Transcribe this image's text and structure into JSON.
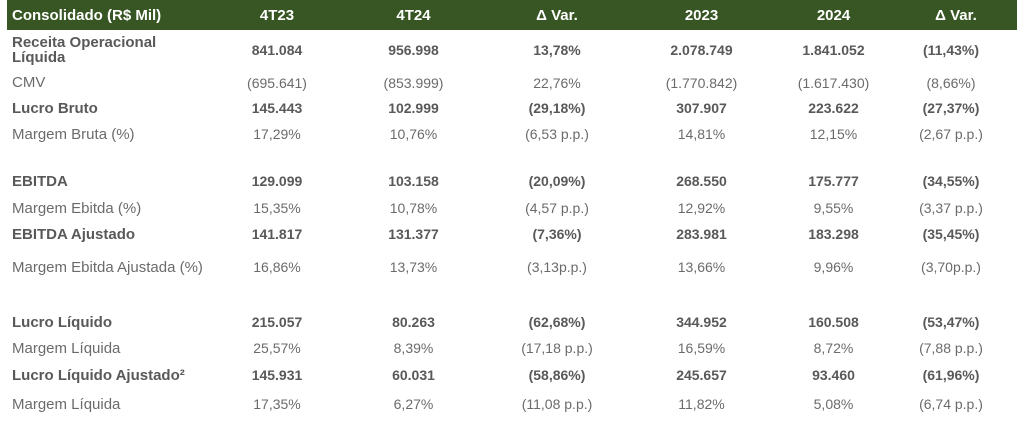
{
  "headers": [
    "Consolidado (R$ Mil)",
    "4T23",
    "4T24",
    "Δ Var.",
    "2023",
    "2024",
    "Δ Var."
  ],
  "rows": [
    {
      "label": "Receita Operacional Líquida",
      "values": [
        "841.084",
        "956.998",
        "13,78%",
        "2.078.749",
        "1.841.052",
        "(11,43%)"
      ]
    },
    {
      "label": "CMV",
      "values": [
        "(695.641)",
        "(853.999)",
        "22,76%",
        "(1.770.842)",
        "(1.617.430)",
        "(8,66%)"
      ]
    },
    {
      "label": "Lucro Bruto",
      "values": [
        "145.443",
        "102.999",
        "(29,18%)",
        "307.907",
        "223.622",
        "(27,37%)"
      ]
    },
    {
      "label": "Margem Bruta (%)",
      "values": [
        "17,29%",
        "10,76%",
        "(6,53 p.p.)",
        "14,81%",
        "12,15%",
        "(2,67 p.p.)"
      ]
    },
    {
      "label": "EBITDA",
      "values": [
        "129.099",
        "103.158",
        "(20,09%)",
        "268.550",
        "175.777",
        "(34,55%)"
      ]
    },
    {
      "label": "Margem Ebitda (%)",
      "values": [
        "15,35%",
        "10,78%",
        "(4,57 p.p.)",
        "12,92%",
        "9,55%",
        "(3,37 p.p.)"
      ]
    },
    {
      "label": "EBITDA Ajustado",
      "values": [
        "141.817",
        "131.377",
        "(7,36%)",
        "283.981",
        "183.298",
        "(35,45%)"
      ]
    },
    {
      "label": "Margem Ebitda Ajustada (%)",
      "values": [
        "16,86%",
        "13,73%",
        "(3,13p.p.)",
        "13,66%",
        "9,96%",
        "(3,70p.p.)"
      ]
    },
    {
      "label": "Lucro Líquido",
      "values": [
        "215.057",
        "80.263",
        "(62,68%)",
        "344.952",
        "160.508",
        "(53,47%)"
      ]
    },
    {
      "label": "Margem Líquida",
      "values": [
        "25,57%",
        "8,39%",
        "(17,18 p.p.)",
        "16,59%",
        "8,72%",
        "(7,88 p.p.)"
      ]
    },
    {
      "label": "Lucro Líquido Ajustado²",
      "values": [
        "145.931",
        "60.031",
        "(58,86%)",
        "245.657",
        "93.460",
        "(61,96%)"
      ]
    },
    {
      "label": "Margem Líquida",
      "values": [
        "17,35%",
        "6,27%",
        "(11,08 p.p.)",
        "11,82%",
        "5,08%",
        "(6,74 p.p.)"
      ]
    }
  ]
}
